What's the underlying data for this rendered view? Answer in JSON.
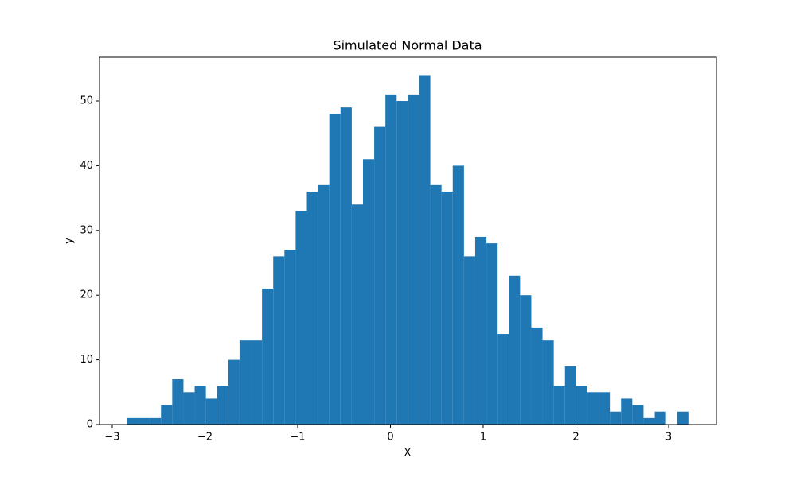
{
  "chart_data": {
    "type": "histogram",
    "title": "Simulated Normal Data",
    "x_label": "X",
    "y_label": "y",
    "color": "#1f77b4",
    "bins": [
      -2.837,
      -2.716,
      -2.595,
      -2.474,
      -2.353,
      -2.232,
      -2.111,
      -1.99,
      -1.869,
      -1.748,
      -1.627,
      -1.506,
      -1.385,
      -1.264,
      -1.143,
      -1.022,
      -0.901,
      -0.78,
      -0.659,
      -0.538,
      -0.417,
      -0.296,
      -0.175,
      -0.054,
      0.067,
      0.188,
      0.309,
      0.43,
      0.551,
      0.672,
      0.793,
      0.914,
      1.035,
      1.156,
      1.277,
      1.398,
      1.519,
      1.64,
      1.761,
      1.882,
      2.003,
      2.124,
      2.245,
      2.366,
      2.487,
      2.608,
      2.729,
      2.85,
      2.971,
      3.092,
      3.213
    ],
    "counts": [
      1,
      1,
      1,
      3,
      7,
      5,
      6,
      4,
      6,
      10,
      13,
      13,
      21,
      26,
      27,
      33,
      36,
      37,
      48,
      49,
      34,
      41,
      46,
      51,
      50,
      51,
      54,
      37,
      36,
      40,
      26,
      29,
      28,
      14,
      23,
      20,
      15,
      13,
      6,
      9,
      6,
      5,
      5,
      2,
      4,
      3,
      1,
      2,
      0,
      2
    ],
    "xlim": [
      -3.137,
      3.515
    ],
    "xticks": [
      {
        "value": -3,
        "label": "−3"
      },
      {
        "value": -2,
        "label": "−2"
      },
      {
        "value": -1,
        "label": "−1"
      },
      0,
      1,
      2,
      3
    ],
    "ylim": [
      0,
      56.76
    ],
    "yticks": [
      0,
      10,
      20,
      30,
      40,
      50
    ]
  }
}
